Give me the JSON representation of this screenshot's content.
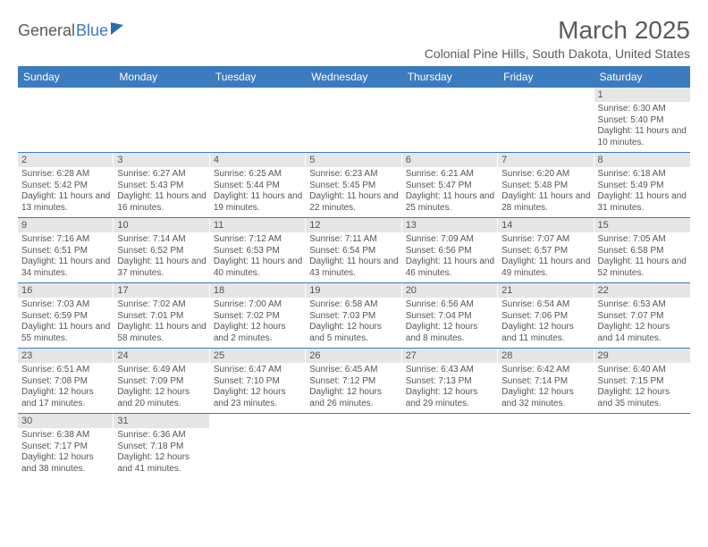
{
  "logo": {
    "part1": "General",
    "part2": "Blue"
  },
  "title": "March 2025",
  "location": "Colonial Pine Hills, South Dakota, United States",
  "colors": {
    "header_bg": "#3b7bbf",
    "daynum_bg": "#e6e6e6",
    "border": "#3b7bbf",
    "text": "#555555"
  },
  "dow": [
    "Sunday",
    "Monday",
    "Tuesday",
    "Wednesday",
    "Thursday",
    "Friday",
    "Saturday"
  ],
  "weeks": [
    [
      {
        "n": "",
        "sr": "",
        "ss": "",
        "dl": "",
        "empty": true
      },
      {
        "n": "",
        "sr": "",
        "ss": "",
        "dl": "",
        "empty": true
      },
      {
        "n": "",
        "sr": "",
        "ss": "",
        "dl": "",
        "empty": true
      },
      {
        "n": "",
        "sr": "",
        "ss": "",
        "dl": "",
        "empty": true
      },
      {
        "n": "",
        "sr": "",
        "ss": "",
        "dl": "",
        "empty": true
      },
      {
        "n": "",
        "sr": "",
        "ss": "",
        "dl": "",
        "empty": true
      },
      {
        "n": "1",
        "sr": "Sunrise: 6:30 AM",
        "ss": "Sunset: 5:40 PM",
        "dl": "Daylight: 11 hours and 10 minutes."
      }
    ],
    [
      {
        "n": "2",
        "sr": "Sunrise: 6:28 AM",
        "ss": "Sunset: 5:42 PM",
        "dl": "Daylight: 11 hours and 13 minutes."
      },
      {
        "n": "3",
        "sr": "Sunrise: 6:27 AM",
        "ss": "Sunset: 5:43 PM",
        "dl": "Daylight: 11 hours and 16 minutes."
      },
      {
        "n": "4",
        "sr": "Sunrise: 6:25 AM",
        "ss": "Sunset: 5:44 PM",
        "dl": "Daylight: 11 hours and 19 minutes."
      },
      {
        "n": "5",
        "sr": "Sunrise: 6:23 AM",
        "ss": "Sunset: 5:45 PM",
        "dl": "Daylight: 11 hours and 22 minutes."
      },
      {
        "n": "6",
        "sr": "Sunrise: 6:21 AM",
        "ss": "Sunset: 5:47 PM",
        "dl": "Daylight: 11 hours and 25 minutes."
      },
      {
        "n": "7",
        "sr": "Sunrise: 6:20 AM",
        "ss": "Sunset: 5:48 PM",
        "dl": "Daylight: 11 hours and 28 minutes."
      },
      {
        "n": "8",
        "sr": "Sunrise: 6:18 AM",
        "ss": "Sunset: 5:49 PM",
        "dl": "Daylight: 11 hours and 31 minutes."
      }
    ],
    [
      {
        "n": "9",
        "sr": "Sunrise: 7:16 AM",
        "ss": "Sunset: 6:51 PM",
        "dl": "Daylight: 11 hours and 34 minutes."
      },
      {
        "n": "10",
        "sr": "Sunrise: 7:14 AM",
        "ss": "Sunset: 6:52 PM",
        "dl": "Daylight: 11 hours and 37 minutes."
      },
      {
        "n": "11",
        "sr": "Sunrise: 7:12 AM",
        "ss": "Sunset: 6:53 PM",
        "dl": "Daylight: 11 hours and 40 minutes."
      },
      {
        "n": "12",
        "sr": "Sunrise: 7:11 AM",
        "ss": "Sunset: 6:54 PM",
        "dl": "Daylight: 11 hours and 43 minutes."
      },
      {
        "n": "13",
        "sr": "Sunrise: 7:09 AM",
        "ss": "Sunset: 6:56 PM",
        "dl": "Daylight: 11 hours and 46 minutes."
      },
      {
        "n": "14",
        "sr": "Sunrise: 7:07 AM",
        "ss": "Sunset: 6:57 PM",
        "dl": "Daylight: 11 hours and 49 minutes."
      },
      {
        "n": "15",
        "sr": "Sunrise: 7:05 AM",
        "ss": "Sunset: 6:58 PM",
        "dl": "Daylight: 11 hours and 52 minutes."
      }
    ],
    [
      {
        "n": "16",
        "sr": "Sunrise: 7:03 AM",
        "ss": "Sunset: 6:59 PM",
        "dl": "Daylight: 11 hours and 55 minutes."
      },
      {
        "n": "17",
        "sr": "Sunrise: 7:02 AM",
        "ss": "Sunset: 7:01 PM",
        "dl": "Daylight: 11 hours and 58 minutes."
      },
      {
        "n": "18",
        "sr": "Sunrise: 7:00 AM",
        "ss": "Sunset: 7:02 PM",
        "dl": "Daylight: 12 hours and 2 minutes."
      },
      {
        "n": "19",
        "sr": "Sunrise: 6:58 AM",
        "ss": "Sunset: 7:03 PM",
        "dl": "Daylight: 12 hours and 5 minutes."
      },
      {
        "n": "20",
        "sr": "Sunrise: 6:56 AM",
        "ss": "Sunset: 7:04 PM",
        "dl": "Daylight: 12 hours and 8 minutes."
      },
      {
        "n": "21",
        "sr": "Sunrise: 6:54 AM",
        "ss": "Sunset: 7:06 PM",
        "dl": "Daylight: 12 hours and 11 minutes."
      },
      {
        "n": "22",
        "sr": "Sunrise: 6:53 AM",
        "ss": "Sunset: 7:07 PM",
        "dl": "Daylight: 12 hours and 14 minutes."
      }
    ],
    [
      {
        "n": "23",
        "sr": "Sunrise: 6:51 AM",
        "ss": "Sunset: 7:08 PM",
        "dl": "Daylight: 12 hours and 17 minutes."
      },
      {
        "n": "24",
        "sr": "Sunrise: 6:49 AM",
        "ss": "Sunset: 7:09 PM",
        "dl": "Daylight: 12 hours and 20 minutes."
      },
      {
        "n": "25",
        "sr": "Sunrise: 6:47 AM",
        "ss": "Sunset: 7:10 PM",
        "dl": "Daylight: 12 hours and 23 minutes."
      },
      {
        "n": "26",
        "sr": "Sunrise: 6:45 AM",
        "ss": "Sunset: 7:12 PM",
        "dl": "Daylight: 12 hours and 26 minutes."
      },
      {
        "n": "27",
        "sr": "Sunrise: 6:43 AM",
        "ss": "Sunset: 7:13 PM",
        "dl": "Daylight: 12 hours and 29 minutes."
      },
      {
        "n": "28",
        "sr": "Sunrise: 6:42 AM",
        "ss": "Sunset: 7:14 PM",
        "dl": "Daylight: 12 hours and 32 minutes."
      },
      {
        "n": "29",
        "sr": "Sunrise: 6:40 AM",
        "ss": "Sunset: 7:15 PM",
        "dl": "Daylight: 12 hours and 35 minutes."
      }
    ],
    [
      {
        "n": "30",
        "sr": "Sunrise: 6:38 AM",
        "ss": "Sunset: 7:17 PM",
        "dl": "Daylight: 12 hours and 38 minutes."
      },
      {
        "n": "31",
        "sr": "Sunrise: 6:36 AM",
        "ss": "Sunset: 7:18 PM",
        "dl": "Daylight: 12 hours and 41 minutes."
      },
      {
        "n": "",
        "sr": "",
        "ss": "",
        "dl": "",
        "empty": true
      },
      {
        "n": "",
        "sr": "",
        "ss": "",
        "dl": "",
        "empty": true
      },
      {
        "n": "",
        "sr": "",
        "ss": "",
        "dl": "",
        "empty": true
      },
      {
        "n": "",
        "sr": "",
        "ss": "",
        "dl": "",
        "empty": true
      },
      {
        "n": "",
        "sr": "",
        "ss": "",
        "dl": "",
        "empty": true
      }
    ]
  ]
}
